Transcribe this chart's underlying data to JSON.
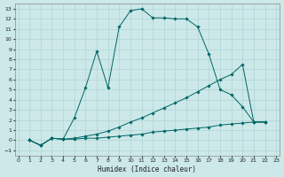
{
  "xlabel": "Humidex (Indice chaleur)",
  "bg_color": "#cce8e8",
  "grid_color": "#b0d4d4",
  "line_color": "#006666",
  "xlim": [
    -0.3,
    23.3
  ],
  "ylim": [
    -1.5,
    13.5
  ],
  "xticks": [
    0,
    1,
    2,
    3,
    4,
    5,
    6,
    7,
    8,
    9,
    10,
    11,
    12,
    13,
    14,
    15,
    16,
    17,
    18,
    19,
    20,
    21,
    22,
    23
  ],
  "yticks": [
    -1,
    0,
    1,
    2,
    3,
    4,
    5,
    6,
    7,
    8,
    9,
    10,
    11,
    12,
    13
  ],
  "line1_x": [
    1,
    2,
    3,
    4,
    5,
    6,
    7,
    8,
    9,
    10,
    11,
    12,
    13,
    14,
    15,
    16,
    17,
    18,
    19,
    20,
    21,
    22
  ],
  "line1_y": [
    0,
    -0.5,
    0.2,
    0.1,
    2.2,
    5.2,
    8.8,
    5.2,
    11.2,
    12.8,
    13.0,
    12.1,
    12.1,
    12.0,
    12.0,
    11.2,
    8.5,
    5.0,
    4.5,
    3.3,
    1.8,
    1.8
  ],
  "line2_x": [
    1,
    2,
    3,
    4,
    5,
    6,
    7,
    8,
    9,
    10,
    11,
    12,
    13,
    14,
    15,
    16,
    17,
    18,
    19,
    20,
    21,
    22
  ],
  "line2_y": [
    0,
    -0.5,
    0.2,
    0.1,
    0.2,
    0.4,
    0.6,
    0.9,
    1.3,
    1.8,
    2.2,
    2.7,
    3.2,
    3.7,
    4.2,
    4.8,
    5.4,
    6.0,
    6.5,
    7.5,
    1.8,
    1.8
  ],
  "line3_x": [
    1,
    2,
    3,
    4,
    5,
    6,
    7,
    8,
    9,
    10,
    11,
    12,
    13,
    14,
    15,
    16,
    17,
    18,
    19,
    20,
    21,
    22
  ],
  "line3_y": [
    0,
    -0.5,
    0.2,
    0.1,
    0.1,
    0.2,
    0.2,
    0.3,
    0.4,
    0.5,
    0.6,
    0.8,
    0.9,
    1.0,
    1.1,
    1.2,
    1.3,
    1.5,
    1.6,
    1.7,
    1.8,
    1.8
  ]
}
